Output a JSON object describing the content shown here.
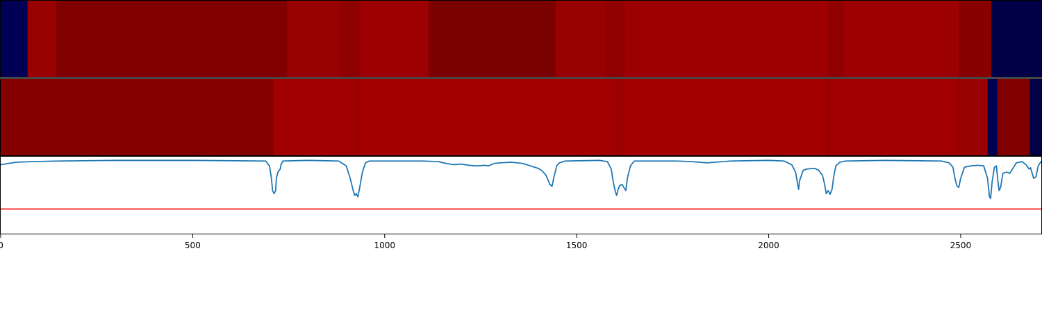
{
  "chart_data": {
    "type": "heatmap",
    "xlim": [
      0,
      2710
    ],
    "x_ticks": [
      {
        "value": 0,
        "label": "0"
      },
      {
        "value": 500,
        "label": "500"
      },
      {
        "value": 1000,
        "label": "1000"
      },
      {
        "value": 1500,
        "label": "1500"
      },
      {
        "value": 2000,
        "label": "2000"
      },
      {
        "value": 2500,
        "label": "2500"
      }
    ],
    "rows": [
      {
        "type": "heatmap",
        "segments": [
          {
            "start": 0,
            "end": 70,
            "color": "#000055"
          },
          {
            "start": 70,
            "end": 145,
            "color": "#990000"
          },
          {
            "start": 145,
            "end": 745,
            "color": "#800000"
          },
          {
            "start": 745,
            "end": 885,
            "color": "#990000"
          },
          {
            "start": 885,
            "end": 935,
            "color": "#8f0000"
          },
          {
            "start": 935,
            "end": 1115,
            "color": "#9c0000"
          },
          {
            "start": 1115,
            "end": 1445,
            "color": "#7b0000"
          },
          {
            "start": 1445,
            "end": 1575,
            "color": "#990000"
          },
          {
            "start": 1575,
            "end": 1625,
            "color": "#8f0000"
          },
          {
            "start": 1625,
            "end": 2155,
            "color": "#9c0000"
          },
          {
            "start": 2155,
            "end": 2195,
            "color": "#8f0000"
          },
          {
            "start": 2195,
            "end": 2495,
            "color": "#9c0000"
          },
          {
            "start": 2495,
            "end": 2580,
            "color": "#880000"
          },
          {
            "start": 2580,
            "end": 2710,
            "color": "#000047"
          }
        ]
      },
      {
        "type": "heatmap",
        "segments": [
          {
            "start": 0,
            "end": 710,
            "color": "#840000"
          },
          {
            "start": 710,
            "end": 925,
            "color": "#a20000"
          },
          {
            "start": 925,
            "end": 935,
            "color": "#990000"
          },
          {
            "start": 935,
            "end": 1600,
            "color": "#a40000"
          },
          {
            "start": 1600,
            "end": 1625,
            "color": "#9a0000"
          },
          {
            "start": 1625,
            "end": 2150,
            "color": "#a40000"
          },
          {
            "start": 2150,
            "end": 2160,
            "color": "#980000"
          },
          {
            "start": 2160,
            "end": 2490,
            "color": "#a20000"
          },
          {
            "start": 2490,
            "end": 2570,
            "color": "#990000"
          },
          {
            "start": 2570,
            "end": 2595,
            "color": "#000050"
          },
          {
            "start": 2595,
            "end": 2680,
            "color": "#800000"
          },
          {
            "start": 2680,
            "end": 2710,
            "color": "#000047"
          }
        ]
      },
      {
        "type": "line",
        "ylim": [
          -1.2,
          0.05
        ],
        "series": [
          {
            "color": "#1f77b4",
            "points": [
              [
                0,
                -0.08
              ],
              [
                20,
                -0.06
              ],
              [
                40,
                -0.04
              ],
              [
                80,
                -0.03
              ],
              [
                150,
                -0.02
              ],
              [
                300,
                -0.01
              ],
              [
                500,
                -0.01
              ],
              [
                690,
                -0.02
              ],
              [
                700,
                -0.1
              ],
              [
                705,
                -0.3
              ],
              [
                708,
                -0.5
              ],
              [
                712,
                -0.55
              ],
              [
                716,
                -0.5
              ],
              [
                718,
                -0.3
              ],
              [
                722,
                -0.2
              ],
              [
                728,
                -0.15
              ],
              [
                730,
                -0.08
              ],
              [
                735,
                -0.02
              ],
              [
                800,
                -0.01
              ],
              [
                880,
                -0.02
              ],
              [
                900,
                -0.1
              ],
              [
                910,
                -0.3
              ],
              [
                918,
                -0.5
              ],
              [
                922,
                -0.58
              ],
              [
                926,
                -0.55
              ],
              [
                930,
                -0.6
              ],
              [
                935,
                -0.45
              ],
              [
                942,
                -0.2
              ],
              [
                950,
                -0.05
              ],
              [
                960,
                -0.02
              ],
              [
                1100,
                -0.02
              ],
              [
                1140,
                -0.03
              ],
              [
                1160,
                -0.06
              ],
              [
                1180,
                -0.08
              ],
              [
                1200,
                -0.07
              ],
              [
                1220,
                -0.09
              ],
              [
                1240,
                -0.1
              ],
              [
                1260,
                -0.09
              ],
              [
                1270,
                -0.1
              ],
              [
                1285,
                -0.06
              ],
              [
                1300,
                -0.05
              ],
              [
                1330,
                -0.04
              ],
              [
                1360,
                -0.06
              ],
              [
                1380,
                -0.1
              ],
              [
                1400,
                -0.14
              ],
              [
                1410,
                -0.18
              ],
              [
                1420,
                -0.25
              ],
              [
                1425,
                -0.32
              ],
              [
                1430,
                -0.4
              ],
              [
                1436,
                -0.43
              ],
              [
                1440,
                -0.3
              ],
              [
                1448,
                -0.1
              ],
              [
                1455,
                -0.05
              ],
              [
                1470,
                -0.02
              ],
              [
                1560,
                -0.01
              ],
              [
                1580,
                -0.03
              ],
              [
                1590,
                -0.15
              ],
              [
                1595,
                -0.35
              ],
              [
                1600,
                -0.5
              ],
              [
                1604,
                -0.58
              ],
              [
                1608,
                -0.48
              ],
              [
                1612,
                -0.42
              ],
              [
                1618,
                -0.4
              ],
              [
                1624,
                -0.46
              ],
              [
                1628,
                -0.5
              ],
              [
                1632,
                -0.3
              ],
              [
                1640,
                -0.1
              ],
              [
                1650,
                -0.02
              ],
              [
                1700,
                -0.02
              ],
              [
                1760,
                -0.02
              ],
              [
                1800,
                -0.03
              ],
              [
                1840,
                -0.05
              ],
              [
                1860,
                -0.04
              ],
              [
                1900,
                -0.02
              ],
              [
                2000,
                -0.01
              ],
              [
                2040,
                -0.02
              ],
              [
                2060,
                -0.08
              ],
              [
                2070,
                -0.2
              ],
              [
                2075,
                -0.38
              ],
              [
                2078,
                -0.48
              ],
              [
                2080,
                -0.35
              ],
              [
                2090,
                -0.17
              ],
              [
                2100,
                -0.15
              ],
              [
                2120,
                -0.14
              ],
              [
                2130,
                -0.17
              ],
              [
                2140,
                -0.25
              ],
              [
                2145,
                -0.38
              ],
              [
                2150,
                -0.55
              ],
              [
                2155,
                -0.5
              ],
              [
                2160,
                -0.56
              ],
              [
                2165,
                -0.48
              ],
              [
                2170,
                -0.25
              ],
              [
                2175,
                -0.1
              ],
              [
                2185,
                -0.04
              ],
              [
                2200,
                -0.02
              ],
              [
                2300,
                -0.01
              ],
              [
                2450,
                -0.02
              ],
              [
                2470,
                -0.05
              ],
              [
                2480,
                -0.12
              ],
              [
                2485,
                -0.3
              ],
              [
                2490,
                -0.42
              ],
              [
                2495,
                -0.45
              ],
              [
                2500,
                -0.3
              ],
              [
                2510,
                -0.12
              ],
              [
                2525,
                -0.1
              ],
              [
                2545,
                -0.09
              ],
              [
                2560,
                -0.1
              ],
              [
                2570,
                -0.3
              ],
              [
                2575,
                -0.6
              ],
              [
                2578,
                -0.63
              ],
              [
                2582,
                -0.35
              ],
              [
                2588,
                -0.12
              ],
              [
                2593,
                -0.1
              ],
              [
                2597,
                -0.35
              ],
              [
                2600,
                -0.5
              ],
              [
                2604,
                -0.45
              ],
              [
                2610,
                -0.22
              ],
              [
                2620,
                -0.2
              ],
              [
                2628,
                -0.22
              ],
              [
                2635,
                -0.15
              ],
              [
                2645,
                -0.05
              ],
              [
                2660,
                -0.03
              ],
              [
                2670,
                -0.08
              ],
              [
                2678,
                -0.15
              ],
              [
                2682,
                -0.13
              ],
              [
                2690,
                -0.3
              ],
              [
                2696,
                -0.28
              ],
              [
                2702,
                -0.1
              ],
              [
                2710,
                -0.02
              ]
            ]
          }
        ],
        "hline": {
          "y": -0.8,
          "color": "#ff0000"
        }
      }
    ]
  }
}
